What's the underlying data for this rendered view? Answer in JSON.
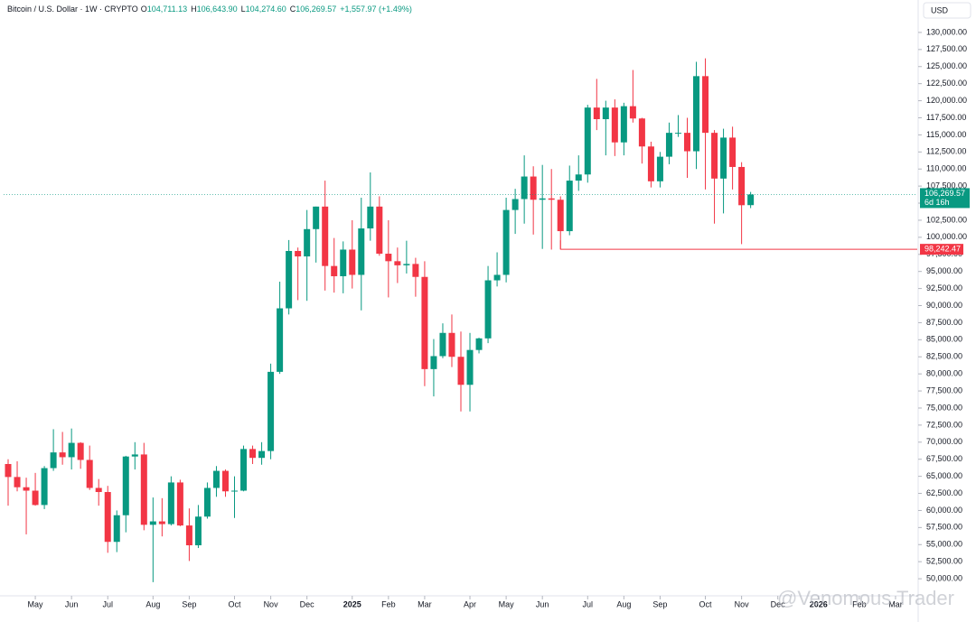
{
  "chart_data": {
    "type": "candlestick",
    "title": "Bitcoin / U.S. Dollar · 1W · CRYPTO",
    "ohlc": [
      {
        "key": "O",
        "value": "104,711.13"
      },
      {
        "key": "H",
        "value": "106,643.90"
      },
      {
        "key": "L",
        "value": "104,274.60"
      },
      {
        "key": "C",
        "value": "106,269.57"
      }
    ],
    "change": "+1,557.97 (+1.49%)",
    "currency": "USD",
    "watermark": "@Venomous Trader",
    "up_color": "#089981",
    "down_color": "#f23645",
    "open": [
      66800,
      64900,
      63400,
      62900,
      60800,
      66200,
      68500,
      67800,
      69900,
      67400,
      63300,
      62700,
      55400,
      59300,
      67900,
      68200,
      57900,
      58400,
      58000,
      64100,
      57800,
      54900,
      59100,
      63300,
      65800,
      62800,
      62900,
      69000,
      67700,
      68700,
      80300,
      89600,
      98000,
      97200,
      101200,
      104500,
      95800,
      94300,
      98200,
      94500,
      101300,
      104500,
      97600,
      96500,
      95900,
      96100,
      94200,
      80700,
      82600,
      86000,
      82500,
      78400,
      83500,
      85200,
      93700,
      94500,
      104000,
      105600,
      108900,
      105500,
      105700,
      105500,
      100900,
      108300,
      109200,
      119000,
      117300,
      119000,
      113900,
      119200,
      117400,
      113300,
      108200,
      111800,
      115300,
      115300,
      112600,
      123600,
      115300,
      108600,
      114600,
      110300,
      104711.13
    ],
    "high": [
      67500,
      67200,
      64800,
      65500,
      66500,
      71900,
      71500,
      72000,
      70000,
      69500,
      64600,
      63600,
      60000,
      68000,
      70000,
      69900,
      61900,
      61800,
      65000,
      64500,
      60300,
      60800,
      64100,
      66500,
      66000,
      65000,
      69500,
      69500,
      70000,
      81500,
      93500,
      99600,
      98500,
      104000,
      104500,
      108300,
      99900,
      99400,
      102500,
      105800,
      109500,
      106000,
      102500,
      98500,
      99500,
      97000,
      96500,
      85100,
      87400,
      88700,
      86200,
      86000,
      85300,
      95800,
      97800,
      105800,
      107100,
      112000,
      110400,
      110600,
      110000,
      106000,
      110500,
      112000,
      119400,
      123200,
      120000,
      120200,
      119700,
      124500,
      117500,
      114000,
      112500,
      116800,
      117900,
      117500,
      125700,
      126200,
      115700,
      115900,
      116200,
      111000,
      106643.9
    ],
    "low": [
      60700,
      62800,
      56500,
      60700,
      60200,
      65800,
      66700,
      66000,
      66100,
      63000,
      60700,
      53800,
      53900,
      56800,
      66000,
      57100,
      49500,
      56200,
      57800,
      57700,
      52600,
      54500,
      58800,
      62000,
      62000,
      58900,
      62800,
      66800,
      66700,
      67500,
      80000,
      88700,
      90800,
      90700,
      96300,
      92200,
      91900,
      91800,
      92500,
      89300,
      99500,
      97300,
      91200,
      93300,
      94700,
      91300,
      78200,
      76700,
      82300,
      81000,
      74500,
      74500,
      83000,
      84500,
      92800,
      93400,
      100500,
      102000,
      100400,
      98300,
      98200,
      98200,
      100300,
      106800,
      108000,
      115700,
      112000,
      111900,
      112000,
      116800,
      110800,
      107300,
      107300,
      110700,
      114700,
      108700,
      110000,
      107000,
      102000,
      103500,
      107000,
      99000,
      104274.6
    ],
    "close": [
      64900,
      63400,
      62900,
      60800,
      66200,
      68500,
      67800,
      69900,
      67400,
      63300,
      62700,
      55400,
      59300,
      67900,
      68200,
      57900,
      58400,
      58000,
      64100,
      57800,
      54900,
      59100,
      63300,
      65800,
      62800,
      62900,
      69000,
      67700,
      68700,
      80300,
      89600,
      98000,
      97200,
      101200,
      104500,
      95800,
      94300,
      98200,
      94500,
      101300,
      104500,
      97600,
      96500,
      95900,
      96100,
      94200,
      80700,
      82600,
      86000,
      82500,
      78400,
      83500,
      85200,
      93700,
      94500,
      104000,
      105600,
      108900,
      105500,
      105700,
      105500,
      100900,
      108300,
      109200,
      119000,
      117300,
      119000,
      113900,
      119200,
      117400,
      113300,
      108200,
      111800,
      115300,
      115300,
      112600,
      123600,
      115300,
      108600,
      114600,
      110300,
      104700,
      106269.57
    ],
    "last_price": {
      "value": 106269.57,
      "label": "106,269.57"
    },
    "countdown": "6d 16h",
    "price_line": {
      "value": 98242.47,
      "label": "98,242.47"
    },
    "xlim": [
      -0.5,
      100.4
    ],
    "xticks": [
      {
        "value": 3,
        "label": "May"
      },
      {
        "value": 7,
        "label": "Jun"
      },
      {
        "value": 11,
        "label": "Jul"
      },
      {
        "value": 16,
        "label": "Aug"
      },
      {
        "value": 20,
        "label": "Sep"
      },
      {
        "value": 25,
        "label": "Oct"
      },
      {
        "value": 29,
        "label": "Nov"
      },
      {
        "value": 33,
        "label": "Dec"
      },
      {
        "value": 38,
        "label": "2025"
      },
      {
        "value": 42,
        "label": "Feb"
      },
      {
        "value": 46,
        "label": "Mar"
      },
      {
        "value": 51,
        "label": "Apr"
      },
      {
        "value": 55,
        "label": "May"
      },
      {
        "value": 59,
        "label": "Jun"
      },
      {
        "value": 64,
        "label": "Jul"
      },
      {
        "value": 68,
        "label": "Aug"
      },
      {
        "value": 72,
        "label": "Sep"
      },
      {
        "value": 77,
        "label": "Oct"
      },
      {
        "value": 81,
        "label": "Nov"
      },
      {
        "value": 85,
        "label": "Dec"
      },
      {
        "value": 89.5,
        "label": "2026"
      },
      {
        "value": 94,
        "label": "Feb"
      },
      {
        "value": 98,
        "label": "Mar"
      }
    ],
    "ylim": [
      47500,
      134750
    ],
    "yticks": [
      {
        "value": 50000,
        "label": "50,000.00"
      },
      {
        "value": 52500,
        "label": "52,500.00"
      },
      {
        "value": 55000,
        "label": "55,000.00"
      },
      {
        "value": 57500,
        "label": "57,500.00"
      },
      {
        "value": 60000,
        "label": "60,000.00"
      },
      {
        "value": 62500,
        "label": "62,500.00"
      },
      {
        "value": 65000,
        "label": "65,000.00"
      },
      {
        "value": 67500,
        "label": "67,500.00"
      },
      {
        "value": 70000,
        "label": "70,000.00"
      },
      {
        "value": 72500,
        "label": "72,500.00"
      },
      {
        "value": 75000,
        "label": "75,000.00"
      },
      {
        "value": 77500,
        "label": "77,500.00"
      },
      {
        "value": 80000,
        "label": "80,000.00"
      },
      {
        "value": 82500,
        "label": "82,500.00"
      },
      {
        "value": 85000,
        "label": "85,000.00"
      },
      {
        "value": 87500,
        "label": "87,500.00"
      },
      {
        "value": 90000,
        "label": "90,000.00"
      },
      {
        "value": 92500,
        "label": "92,500.00"
      },
      {
        "value": 95000,
        "label": "95,000.00"
      },
      {
        "value": 97500,
        "label": "97,500.00"
      },
      {
        "value": 100000,
        "label": "100,000.00"
      },
      {
        "value": 102500,
        "label": "102,500.00"
      },
      {
        "value": 105000,
        "label": "105,000.00"
      },
      {
        "value": 107500,
        "label": "107,500.00"
      },
      {
        "value": 110000,
        "label": "110,000.00"
      },
      {
        "value": 112500,
        "label": "112,500.00"
      },
      {
        "value": 115000,
        "label": "115,000.00"
      },
      {
        "value": 117500,
        "label": "117,500.00"
      },
      {
        "value": 120000,
        "label": "120,000.00"
      },
      {
        "value": 122500,
        "label": "122,500.00"
      },
      {
        "value": 125000,
        "label": "125,000.00"
      },
      {
        "value": 127500,
        "label": "127,500.00"
      },
      {
        "value": 130000,
        "label": "130,000.00"
      }
    ]
  }
}
